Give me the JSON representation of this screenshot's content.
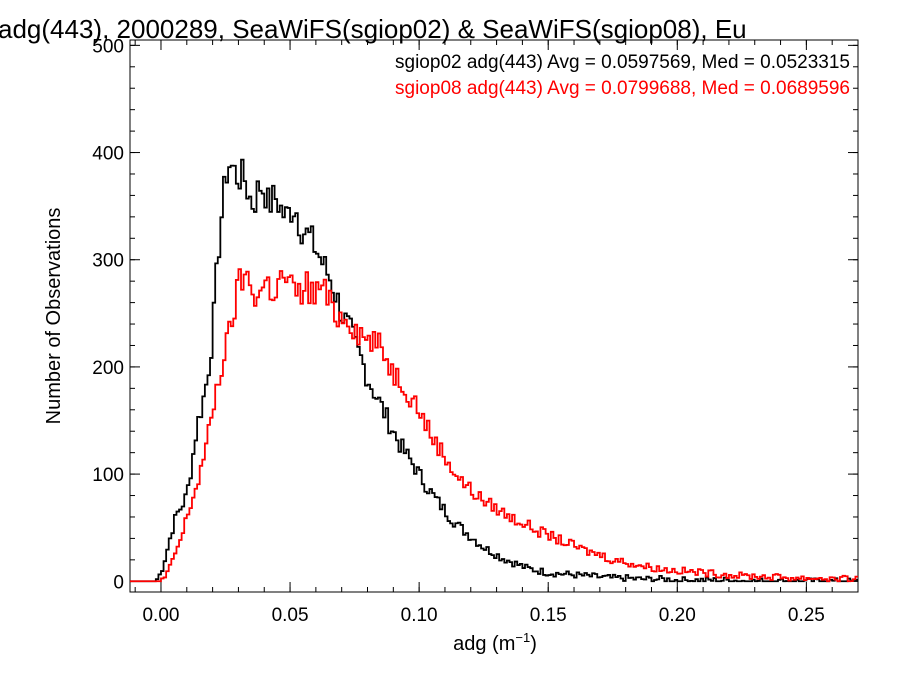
{
  "chart_data": {
    "type": "step-histogram",
    "title": "adg(443), 2000289, SeaWiFS(sgiop02) & SeaWiFS(sgiop08), Eu",
    "xlabel_main": "adg (m",
    "xlabel_sup": "−1",
    "xlabel_end": ")",
    "ylabel": "Number of Observations",
    "xlim": [
      -0.012,
      0.27
    ],
    "ylim": [
      -10,
      505
    ],
    "x_ticks": [
      0.0,
      0.05,
      0.1,
      0.15,
      0.2,
      0.25
    ],
    "x_tick_labels": [
      "0.00",
      "0.05",
      "0.10",
      "0.15",
      "0.20",
      "0.25"
    ],
    "y_ticks": [
      0,
      100,
      200,
      300,
      400,
      500
    ],
    "y_tick_labels": [
      "0",
      "100",
      "200",
      "300",
      "400",
      "500"
    ],
    "bin_width": 0.001,
    "series": [
      {
        "name": "sgiop02",
        "color": "#000000",
        "legend": "sgiop02 adg(443) Avg = 0.0597569, Med = 0.0523315",
        "x": [
          -0.002,
          0.0,
          0.002,
          0.004,
          0.006,
          0.008,
          0.01,
          0.012,
          0.014,
          0.016,
          0.018,
          0.02,
          0.022,
          0.024,
          0.026,
          0.028,
          0.03,
          0.032,
          0.034,
          0.036,
          0.038,
          0.04,
          0.042,
          0.044,
          0.046,
          0.048,
          0.05,
          0.052,
          0.054,
          0.056,
          0.058,
          0.06,
          0.062,
          0.064,
          0.066,
          0.068,
          0.07,
          0.072,
          0.074,
          0.076,
          0.078,
          0.08,
          0.082,
          0.084,
          0.086,
          0.088,
          0.09,
          0.092,
          0.094,
          0.096,
          0.098,
          0.1,
          0.102,
          0.104,
          0.106,
          0.108,
          0.11,
          0.112,
          0.114,
          0.116,
          0.118,
          0.12,
          0.122,
          0.124,
          0.126,
          0.128,
          0.13,
          0.132,
          0.134,
          0.136,
          0.138,
          0.14,
          0.142,
          0.144,
          0.146,
          0.148,
          0.15,
          0.155,
          0.16,
          0.165,
          0.17,
          0.175,
          0.18,
          0.185,
          0.19,
          0.195,
          0.2,
          0.21,
          0.22,
          0.23,
          0.24,
          0.25,
          0.26,
          0.27
        ],
        "y": [
          0,
          8,
          25,
          45,
          62,
          70,
          80,
          110,
          145,
          165,
          190,
          230,
          300,
          355,
          390,
          385,
          375,
          380,
          360,
          350,
          370,
          365,
          350,
          360,
          350,
          340,
          345,
          350,
          330,
          325,
          320,
          310,
          300,
          290,
          280,
          265,
          250,
          240,
          230,
          215,
          205,
          190,
          180,
          170,
          160,
          150,
          140,
          130,
          122,
          115,
          108,
          100,
          92,
          85,
          78,
          72,
          66,
          60,
          55,
          50,
          46,
          42,
          38,
          34,
          30,
          28,
          25,
          22,
          20,
          18,
          16,
          14,
          12,
          11,
          10,
          9,
          8,
          7,
          6,
          5,
          4,
          3,
          3,
          2,
          2,
          2,
          1,
          1,
          1,
          0,
          0,
          0,
          0,
          0
        ]
      },
      {
        "name": "sgiop08",
        "color": "#ff0000",
        "legend": "sgiop08 adg(443) Avg = 0.0799688, Med = 0.0689596",
        "x": [
          0.0,
          0.002,
          0.004,
          0.006,
          0.008,
          0.01,
          0.012,
          0.014,
          0.016,
          0.018,
          0.02,
          0.022,
          0.024,
          0.026,
          0.028,
          0.03,
          0.032,
          0.034,
          0.036,
          0.038,
          0.04,
          0.042,
          0.044,
          0.046,
          0.048,
          0.05,
          0.052,
          0.054,
          0.056,
          0.058,
          0.06,
          0.062,
          0.064,
          0.066,
          0.068,
          0.07,
          0.072,
          0.074,
          0.076,
          0.078,
          0.08,
          0.082,
          0.084,
          0.086,
          0.088,
          0.09,
          0.092,
          0.094,
          0.096,
          0.098,
          0.1,
          0.102,
          0.104,
          0.106,
          0.108,
          0.11,
          0.112,
          0.114,
          0.116,
          0.118,
          0.12,
          0.125,
          0.13,
          0.135,
          0.14,
          0.145,
          0.15,
          0.155,
          0.16,
          0.165,
          0.17,
          0.175,
          0.18,
          0.185,
          0.19,
          0.195,
          0.2,
          0.205,
          0.21,
          0.215,
          0.22,
          0.225,
          0.23,
          0.235,
          0.24,
          0.245,
          0.25,
          0.255,
          0.26,
          0.265,
          0.27
        ],
        "y": [
          0,
          5,
          15,
          30,
          40,
          60,
          75,
          90,
          110,
          130,
          160,
          185,
          205,
          225,
          250,
          275,
          285,
          280,
          270,
          265,
          280,
          275,
          270,
          280,
          285,
          275,
          270,
          265,
          280,
          270,
          265,
          280,
          265,
          255,
          250,
          245,
          250,
          240,
          235,
          230,
          225,
          225,
          220,
          215,
          205,
          195,
          190,
          185,
          175,
          170,
          160,
          150,
          140,
          130,
          125,
          115,
          110,
          100,
          95,
          90,
          85,
          75,
          68,
          60,
          55,
          48,
          43,
          38,
          33,
          28,
          25,
          20,
          18,
          15,
          13,
          11,
          10,
          9,
          8,
          7,
          6,
          5,
          5,
          4,
          4,
          3,
          3,
          3,
          2,
          2,
          2
        ]
      }
    ]
  }
}
